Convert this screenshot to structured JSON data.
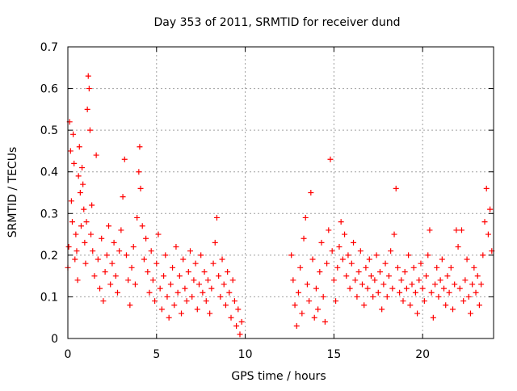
{
  "chart_data": {
    "type": "scatter",
    "title": "Day 353 of 2011, SRMTID for receiver dund",
    "xlabel": "GPS time / hours",
    "ylabel": "SRMTID / TECUs",
    "xlim": [
      0,
      24
    ],
    "ylim": [
      0,
      0.7
    ],
    "xticks": [
      0,
      5,
      10,
      15,
      20
    ],
    "xtick_labels": [
      "0",
      "5",
      "10",
      "15",
      "20"
    ],
    "yticks": [
      0,
      0.1,
      0.2,
      0.3,
      0.4,
      0.5,
      0.6,
      0.7
    ],
    "ytick_labels": [
      "0",
      "0.1",
      "0.2",
      "0.3",
      "0.4",
      "0.5",
      "0.6",
      "0.7"
    ],
    "grid": true,
    "legend": "none",
    "marker": "+",
    "series_color": "#ff0000",
    "series": [
      {
        "name": "SRMTID",
        "points": [
          [
            0.0,
            0.17
          ],
          [
            0.05,
            0.22
          ],
          [
            0.1,
            0.52
          ],
          [
            0.15,
            0.45
          ],
          [
            0.2,
            0.33
          ],
          [
            0.25,
            0.28
          ],
          [
            0.3,
            0.49
          ],
          [
            0.35,
            0.42
          ],
          [
            0.4,
            0.19
          ],
          [
            0.45,
            0.25
          ],
          [
            0.5,
            0.21
          ],
          [
            0.55,
            0.14
          ],
          [
            0.6,
            0.39
          ],
          [
            0.65,
            0.46
          ],
          [
            0.7,
            0.35
          ],
          [
            0.75,
            0.27
          ],
          [
            0.8,
            0.41
          ],
          [
            0.85,
            0.37
          ],
          [
            0.9,
            0.31
          ],
          [
            0.95,
            0.23
          ],
          [
            1.0,
            0.18
          ],
          [
            1.05,
            0.28
          ],
          [
            1.1,
            0.55
          ],
          [
            1.15,
            0.63
          ],
          [
            1.2,
            0.6
          ],
          [
            1.25,
            0.5
          ],
          [
            1.3,
            0.25
          ],
          [
            1.35,
            0.32
          ],
          [
            1.4,
            0.21
          ],
          [
            1.5,
            0.15
          ],
          [
            1.6,
            0.44
          ],
          [
            1.7,
            0.19
          ],
          [
            1.8,
            0.12
          ],
          [
            1.9,
            0.24
          ],
          [
            2.0,
            0.09
          ],
          [
            2.1,
            0.16
          ],
          [
            2.2,
            0.2
          ],
          [
            2.3,
            0.27
          ],
          [
            2.4,
            0.13
          ],
          [
            2.5,
            0.18
          ],
          [
            2.6,
            0.23
          ],
          [
            2.7,
            0.15
          ],
          [
            2.8,
            0.11
          ],
          [
            2.9,
            0.21
          ],
          [
            3.0,
            0.26
          ],
          [
            3.1,
            0.34
          ],
          [
            3.2,
            0.43
          ],
          [
            3.3,
            0.2
          ],
          [
            3.4,
            0.14
          ],
          [
            3.5,
            0.08
          ],
          [
            3.6,
            0.17
          ],
          [
            3.7,
            0.22
          ],
          [
            3.8,
            0.13
          ],
          [
            3.9,
            0.29
          ],
          [
            4.0,
            0.4
          ],
          [
            4.05,
            0.46
          ],
          [
            4.1,
            0.36
          ],
          [
            4.2,
            0.27
          ],
          [
            4.3,
            0.19
          ],
          [
            4.4,
            0.24
          ],
          [
            4.5,
            0.16
          ],
          [
            4.6,
            0.11
          ],
          [
            4.7,
            0.21
          ],
          [
            4.8,
            0.14
          ],
          [
            4.9,
            0.09
          ],
          [
            5.0,
            0.18
          ],
          [
            5.1,
            0.25
          ],
          [
            5.2,
            0.12
          ],
          [
            5.3,
            0.07
          ],
          [
            5.4,
            0.15
          ],
          [
            5.5,
            0.2
          ],
          [
            5.6,
            0.1
          ],
          [
            5.7,
            0.05
          ],
          [
            5.8,
            0.13
          ],
          [
            5.9,
            0.17
          ],
          [
            6.0,
            0.08
          ],
          [
            6.1,
            0.22
          ],
          [
            6.2,
            0.11
          ],
          [
            6.3,
            0.15
          ],
          [
            6.4,
            0.06
          ],
          [
            6.5,
            0.19
          ],
          [
            6.6,
            0.12
          ],
          [
            6.7,
            0.09
          ],
          [
            6.8,
            0.16
          ],
          [
            6.9,
            0.21
          ],
          [
            7.0,
            0.1
          ],
          [
            7.1,
            0.14
          ],
          [
            7.2,
            0.18
          ],
          [
            7.3,
            0.07
          ],
          [
            7.4,
            0.13
          ],
          [
            7.5,
            0.2
          ],
          [
            7.6,
            0.11
          ],
          [
            7.7,
            0.16
          ],
          [
            7.8,
            0.09
          ],
          [
            7.9,
            0.14
          ],
          [
            8.0,
            0.06
          ],
          [
            8.1,
            0.12
          ],
          [
            8.2,
            0.18
          ],
          [
            8.3,
            0.23
          ],
          [
            8.4,
            0.29
          ],
          [
            8.5,
            0.15
          ],
          [
            8.6,
            0.1
          ],
          [
            8.7,
            0.19
          ],
          [
            8.8,
            0.13
          ],
          [
            8.9,
            0.08
          ],
          [
            9.0,
            0.16
          ],
          [
            9.1,
            0.11
          ],
          [
            9.2,
            0.05
          ],
          [
            9.3,
            0.14
          ],
          [
            9.4,
            0.09
          ],
          [
            9.5,
            0.03
          ],
          [
            9.6,
            0.07
          ],
          [
            9.7,
            0.01
          ],
          [
            9.8,
            0.04
          ],
          [
            12.6,
            0.2
          ],
          [
            12.7,
            0.14
          ],
          [
            12.8,
            0.08
          ],
          [
            12.9,
            0.03
          ],
          [
            13.0,
            0.11
          ],
          [
            13.1,
            0.17
          ],
          [
            13.2,
            0.06
          ],
          [
            13.3,
            0.24
          ],
          [
            13.4,
            0.29
          ],
          [
            13.5,
            0.13
          ],
          [
            13.6,
            0.09
          ],
          [
            13.7,
            0.35
          ],
          [
            13.8,
            0.19
          ],
          [
            13.9,
            0.05
          ],
          [
            14.0,
            0.12
          ],
          [
            14.1,
            0.07
          ],
          [
            14.2,
            0.16
          ],
          [
            14.3,
            0.23
          ],
          [
            14.4,
            0.1
          ],
          [
            14.5,
            0.04
          ],
          [
            14.6,
            0.18
          ],
          [
            14.7,
            0.26
          ],
          [
            14.8,
            0.43
          ],
          [
            14.9,
            0.21
          ],
          [
            15.0,
            0.14
          ],
          [
            15.1,
            0.09
          ],
          [
            15.2,
            0.17
          ],
          [
            15.3,
            0.22
          ],
          [
            15.4,
            0.28
          ],
          [
            15.5,
            0.19
          ],
          [
            15.6,
            0.25
          ],
          [
            15.7,
            0.15
          ],
          [
            15.8,
            0.2
          ],
          [
            15.9,
            0.12
          ],
          [
            16.0,
            0.18
          ],
          [
            16.1,
            0.23
          ],
          [
            16.2,
            0.14
          ],
          [
            16.3,
            0.1
          ],
          [
            16.4,
            0.16
          ],
          [
            16.5,
            0.21
          ],
          [
            16.6,
            0.13
          ],
          [
            16.7,
            0.08
          ],
          [
            16.8,
            0.17
          ],
          [
            16.9,
            0.12
          ],
          [
            17.0,
            0.19
          ],
          [
            17.1,
            0.15
          ],
          [
            17.2,
            0.1
          ],
          [
            17.3,
            0.14
          ],
          [
            17.4,
            0.2
          ],
          [
            17.5,
            0.11
          ],
          [
            17.6,
            0.16
          ],
          [
            17.7,
            0.07
          ],
          [
            17.8,
            0.13
          ],
          [
            17.9,
            0.18
          ],
          [
            18.0,
            0.1
          ],
          [
            18.1,
            0.15
          ],
          [
            18.2,
            0.21
          ],
          [
            18.3,
            0.12
          ],
          [
            18.4,
            0.25
          ],
          [
            18.5,
            0.36
          ],
          [
            18.6,
            0.17
          ],
          [
            18.7,
            0.11
          ],
          [
            18.8,
            0.14
          ],
          [
            18.9,
            0.09
          ],
          [
            19.0,
            0.16
          ],
          [
            19.1,
            0.12
          ],
          [
            19.2,
            0.2
          ],
          [
            19.3,
            0.08
          ],
          [
            19.4,
            0.13
          ],
          [
            19.5,
            0.17
          ],
          [
            19.6,
            0.11
          ],
          [
            19.7,
            0.06
          ],
          [
            19.8,
            0.14
          ],
          [
            19.9,
            0.18
          ],
          [
            20.0,
            0.12
          ],
          [
            20.1,
            0.09
          ],
          [
            20.2,
            0.15
          ],
          [
            20.3,
            0.2
          ],
          [
            20.4,
            0.26
          ],
          [
            20.5,
            0.11
          ],
          [
            20.6,
            0.05
          ],
          [
            20.7,
            0.13
          ],
          [
            20.8,
            0.17
          ],
          [
            20.9,
            0.1
          ],
          [
            21.0,
            0.14
          ],
          [
            21.1,
            0.19
          ],
          [
            21.2,
            0.12
          ],
          [
            21.3,
            0.08
          ],
          [
            21.4,
            0.15
          ],
          [
            21.5,
            0.11
          ],
          [
            21.6,
            0.17
          ],
          [
            21.7,
            0.07
          ],
          [
            21.8,
            0.13
          ],
          [
            21.9,
            0.26
          ],
          [
            22.0,
            0.22
          ],
          [
            22.1,
            0.12
          ],
          [
            22.2,
            0.26
          ],
          [
            22.3,
            0.09
          ],
          [
            22.4,
            0.14
          ],
          [
            22.5,
            0.19
          ],
          [
            22.6,
            0.1
          ],
          [
            22.7,
            0.06
          ],
          [
            22.8,
            0.13
          ],
          [
            22.9,
            0.17
          ],
          [
            23.0,
            0.11
          ],
          [
            23.1,
            0.15
          ],
          [
            23.2,
            0.08
          ],
          [
            23.3,
            0.13
          ],
          [
            23.4,
            0.2
          ],
          [
            23.5,
            0.28
          ],
          [
            23.6,
            0.36
          ],
          [
            23.7,
            0.25
          ],
          [
            23.8,
            0.31
          ],
          [
            23.9,
            0.21
          ]
        ]
      }
    ]
  }
}
